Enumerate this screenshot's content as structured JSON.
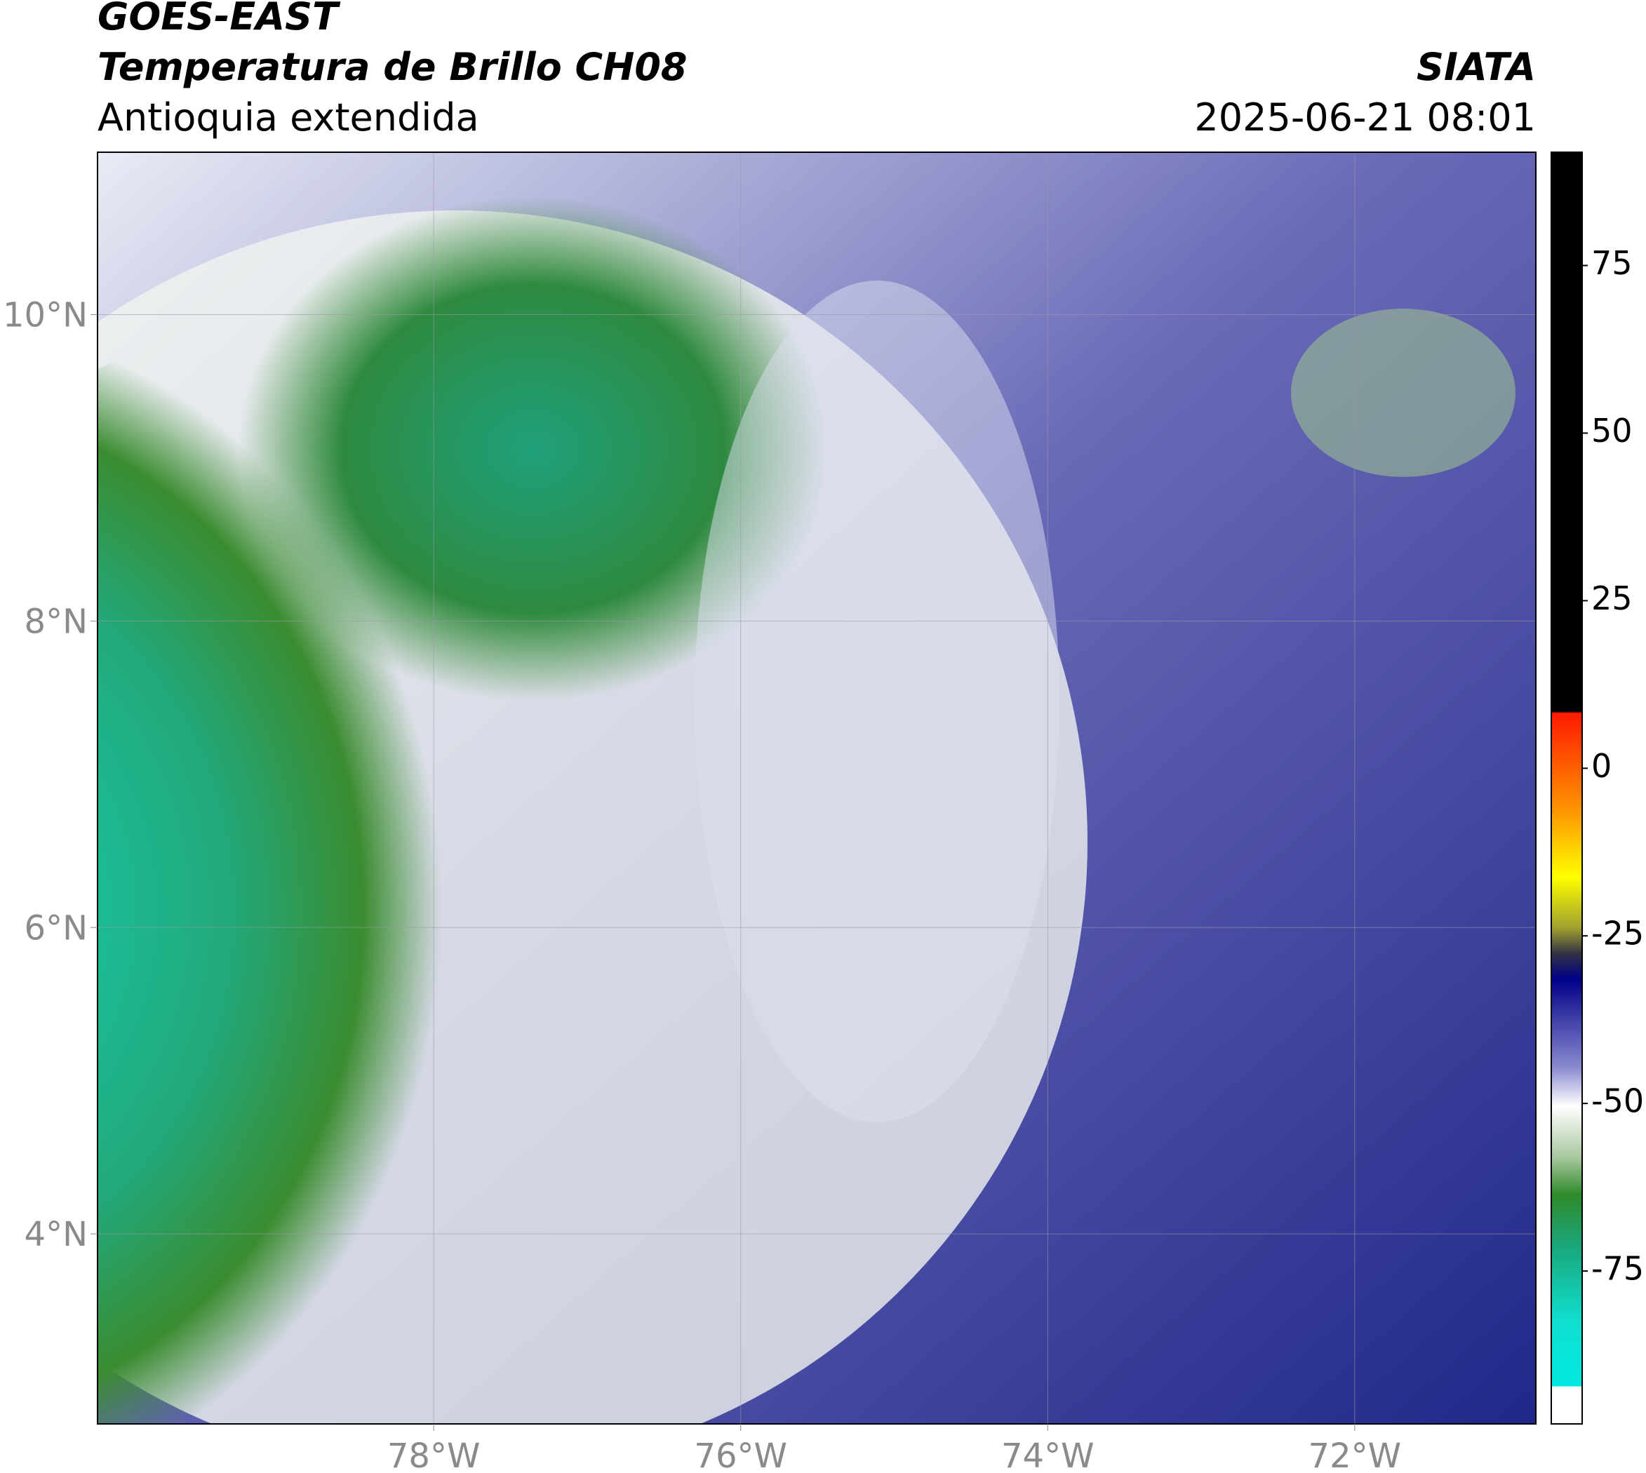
{
  "header": {
    "title": "GOES-EAST",
    "subtitle": "Temperatura de Brillo CH08",
    "region": "Antioquia extendida",
    "source": "SIATA",
    "datetime": "2025-06-21 08:01"
  },
  "map": {
    "lonlim": [
      -80.19,
      -70.82
    ],
    "latlim": [
      2.76,
      11.06
    ],
    "grid": true,
    "xticks": [
      {
        "value": -78,
        "label": "78°W"
      },
      {
        "value": -76,
        "label": "76°W"
      },
      {
        "value": -74,
        "label": "74°W"
      },
      {
        "value": -72,
        "label": "72°W"
      }
    ],
    "yticks": [
      {
        "value": 10,
        "label": "10°N"
      },
      {
        "value": 8,
        "label": "8°N"
      },
      {
        "value": 6,
        "label": "6°N"
      },
      {
        "value": 4,
        "label": "4°N"
      }
    ]
  },
  "colorbar": {
    "lim": [
      -97.8,
      91.9
    ],
    "ticks": [
      75,
      50,
      25,
      0,
      -25,
      -50,
      -75
    ]
  }
}
